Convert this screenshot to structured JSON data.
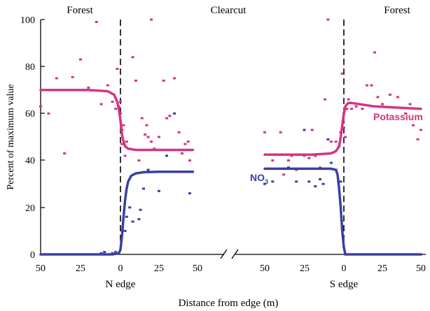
{
  "chart_data": {
    "type": "scatter",
    "ylabel": "Percent of maximum value",
    "xlabel": "Distance from edge (m)",
    "ylim": [
      0,
      100
    ],
    "yticks": [
      0,
      20,
      40,
      60,
      80,
      100
    ],
    "region_labels": [
      "Forest",
      "Clearcut",
      "Forest"
    ],
    "panels": [
      {
        "edge_label": "N edge",
        "xticks": [
          "50",
          "25",
          "0",
          "25",
          "50"
        ],
        "curves": [
          {
            "name": "Potassium",
            "color": "#d63384",
            "x": [
              -50,
              -20,
              -8,
              -4,
              -2,
              -1,
              0,
              1,
              2,
              3,
              5,
              10,
              20,
              47
            ],
            "y": [
              70,
              70,
              69.5,
              68,
              65,
              62,
              57,
              51,
              48,
              46,
              45,
              44.5,
              44.5,
              44.5
            ]
          },
          {
            "name": "NO3",
            "color": "#3a3fa3",
            "x": [
              -50,
              -5,
              -1,
              0,
              1,
              2,
              3,
              4,
              5,
              7,
              10,
              15,
              25,
              47
            ],
            "y": [
              0,
              0,
              0.5,
              2,
              8,
              16,
              23,
              28,
              31,
              33.5,
              34.5,
              35,
              35.2,
              35.2
            ]
          }
        ],
        "points": [
          {
            "series": "Potassium",
            "xy": [
              [
                -50,
                63
              ],
              [
                -45,
                60
              ],
              [
                -40,
                75
              ],
              [
                -35,
                43
              ],
              [
                -30,
                75.5
              ],
              [
                -25,
                83
              ],
              [
                -20,
                71
              ],
              [
                -15,
                99
              ],
              [
                -12,
                64
              ],
              [
                -8,
                72
              ],
              [
                -5,
                65
              ],
              [
                -3,
                62
              ],
              [
                -2,
                79
              ],
              [
                -1,
                63
              ],
              [
                0,
                65
              ],
              [
                0,
                60
              ],
              [
                1,
                53
              ],
              [
                1,
                47
              ],
              [
                2,
                55
              ],
              [
                3,
                42
              ],
              [
                4,
                48
              ],
              [
                6,
                45
              ],
              [
                8,
                84
              ],
              [
                10,
                74
              ],
              [
                12,
                40
              ],
              [
                14,
                58
              ],
              [
                16,
                51
              ],
              [
                17,
                55
              ],
              [
                18,
                50
              ],
              [
                20,
                100
              ],
              [
                20,
                48
              ],
              [
                22,
                45
              ],
              [
                25,
                50
              ],
              [
                28,
                74
              ],
              [
                30,
                58
              ],
              [
                32,
                59
              ],
              [
                35,
                75
              ],
              [
                38,
                52
              ],
              [
                40,
                43
              ],
              [
                42,
                47
              ],
              [
                44,
                48
              ],
              [
                45,
                40
              ]
            ]
          },
          {
            "series": "NO3",
            "xy": [
              [
                -48,
                0
              ],
              [
                -45,
                0
              ],
              [
                -30,
                0
              ],
              [
                -25,
                0
              ],
              [
                -20,
                0
              ],
              [
                -12,
                0.5
              ],
              [
                -10,
                1
              ],
              [
                -8,
                0
              ],
              [
                -5,
                0.5
              ],
              [
                -3,
                1
              ],
              [
                3,
                10
              ],
              [
                4,
                16
              ],
              [
                6,
                20
              ],
              [
                8,
                14
              ],
              [
                12,
                15
              ],
              [
                13,
                19
              ],
              [
                15,
                28
              ],
              [
                18,
                36
              ],
              [
                25,
                27
              ],
              [
                30,
                42
              ],
              [
                35,
                60
              ],
              [
                45,
                26
              ]
            ]
          }
        ]
      },
      {
        "edge_label": "S edge",
        "xticks": [
          "50",
          "25",
          "0",
          "25",
          "50"
        ],
        "curves": [
          {
            "name": "Potassium",
            "color": "#d63384",
            "label": "Potassium",
            "x": [
              -50,
              -20,
              -8,
              -5,
              -3,
              -2,
              -1,
              0,
              1,
              2,
              3,
              5,
              10,
              20,
              50
            ],
            "y": [
              42.5,
              42.5,
              43,
              44,
              46,
              50,
              55,
              60,
              63,
              64,
              64.5,
              64.5,
              64,
              63,
              62
            ]
          },
          {
            "name": "NO3",
            "color": "#3a3fa3",
            "label": "NO3",
            "x": [
              -50,
              -20,
              -8,
              -5,
              -4,
              -3,
              -2,
              -1,
              0,
              1,
              3,
              50
            ],
            "y": [
              36.5,
              36.5,
              36.5,
              36,
              34,
              28,
              20,
              10,
              3,
              0,
              0,
              0
            ]
          }
        ],
        "points": [
          {
            "series": "Potassium",
            "xy": [
              [
                -50,
                52
              ],
              [
                -45,
                40
              ],
              [
                -40,
                52
              ],
              [
                -38,
                34
              ],
              [
                -35,
                40
              ],
              [
                -33,
                42
              ],
              [
                -30,
                36
              ],
              [
                -25,
                42
              ],
              [
                -22,
                41
              ],
              [
                -20,
                53
              ],
              [
                -18,
                42
              ],
              [
                -15,
                37
              ],
              [
                -12,
                66
              ],
              [
                -10,
                100
              ],
              [
                -8,
                48
              ],
              [
                -5,
                48
              ],
              [
                -3,
                46
              ],
              [
                -2,
                52
              ],
              [
                -1,
                77
              ],
              [
                0,
                60
              ],
              [
                0,
                54
              ],
              [
                1,
                50
              ],
              [
                2,
                62
              ],
              [
                3,
                66
              ],
              [
                5,
                62
              ],
              [
                8,
                63
              ],
              [
                12,
                62
              ],
              [
                15,
                72
              ],
              [
                18,
                72
              ],
              [
                20,
                86
              ],
              [
                22,
                67
              ],
              [
                25,
                64
              ],
              [
                30,
                68
              ],
              [
                35,
                67
              ],
              [
                40,
                60
              ],
              [
                43,
                64
              ],
              [
                45,
                55
              ],
              [
                48,
                49
              ],
              [
                50,
                53
              ]
            ]
          },
          {
            "series": "NO3",
            "xy": [
              [
                -50,
                30
              ],
              [
                -45,
                31
              ],
              [
                -35,
                37
              ],
              [
                -30,
                31
              ],
              [
                -25,
                53
              ],
              [
                -22,
                31
              ],
              [
                -18,
                29
              ],
              [
                -15,
                32
              ],
              [
                -13,
                30
              ],
              [
                -10,
                49
              ],
              [
                -8,
                39
              ],
              [
                -5,
                36
              ],
              [
                -2,
                31
              ],
              [
                1,
                0
              ],
              [
                3,
                0
              ],
              [
                5,
                0
              ],
              [
                8,
                0
              ],
              [
                10,
                0
              ],
              [
                15,
                0
              ],
              [
                20,
                0
              ],
              [
                25,
                0
              ],
              [
                30,
                0
              ],
              [
                35,
                0
              ],
              [
                40,
                0
              ],
              [
                45,
                0
              ],
              [
                50,
                0
              ]
            ]
          }
        ]
      }
    ]
  }
}
